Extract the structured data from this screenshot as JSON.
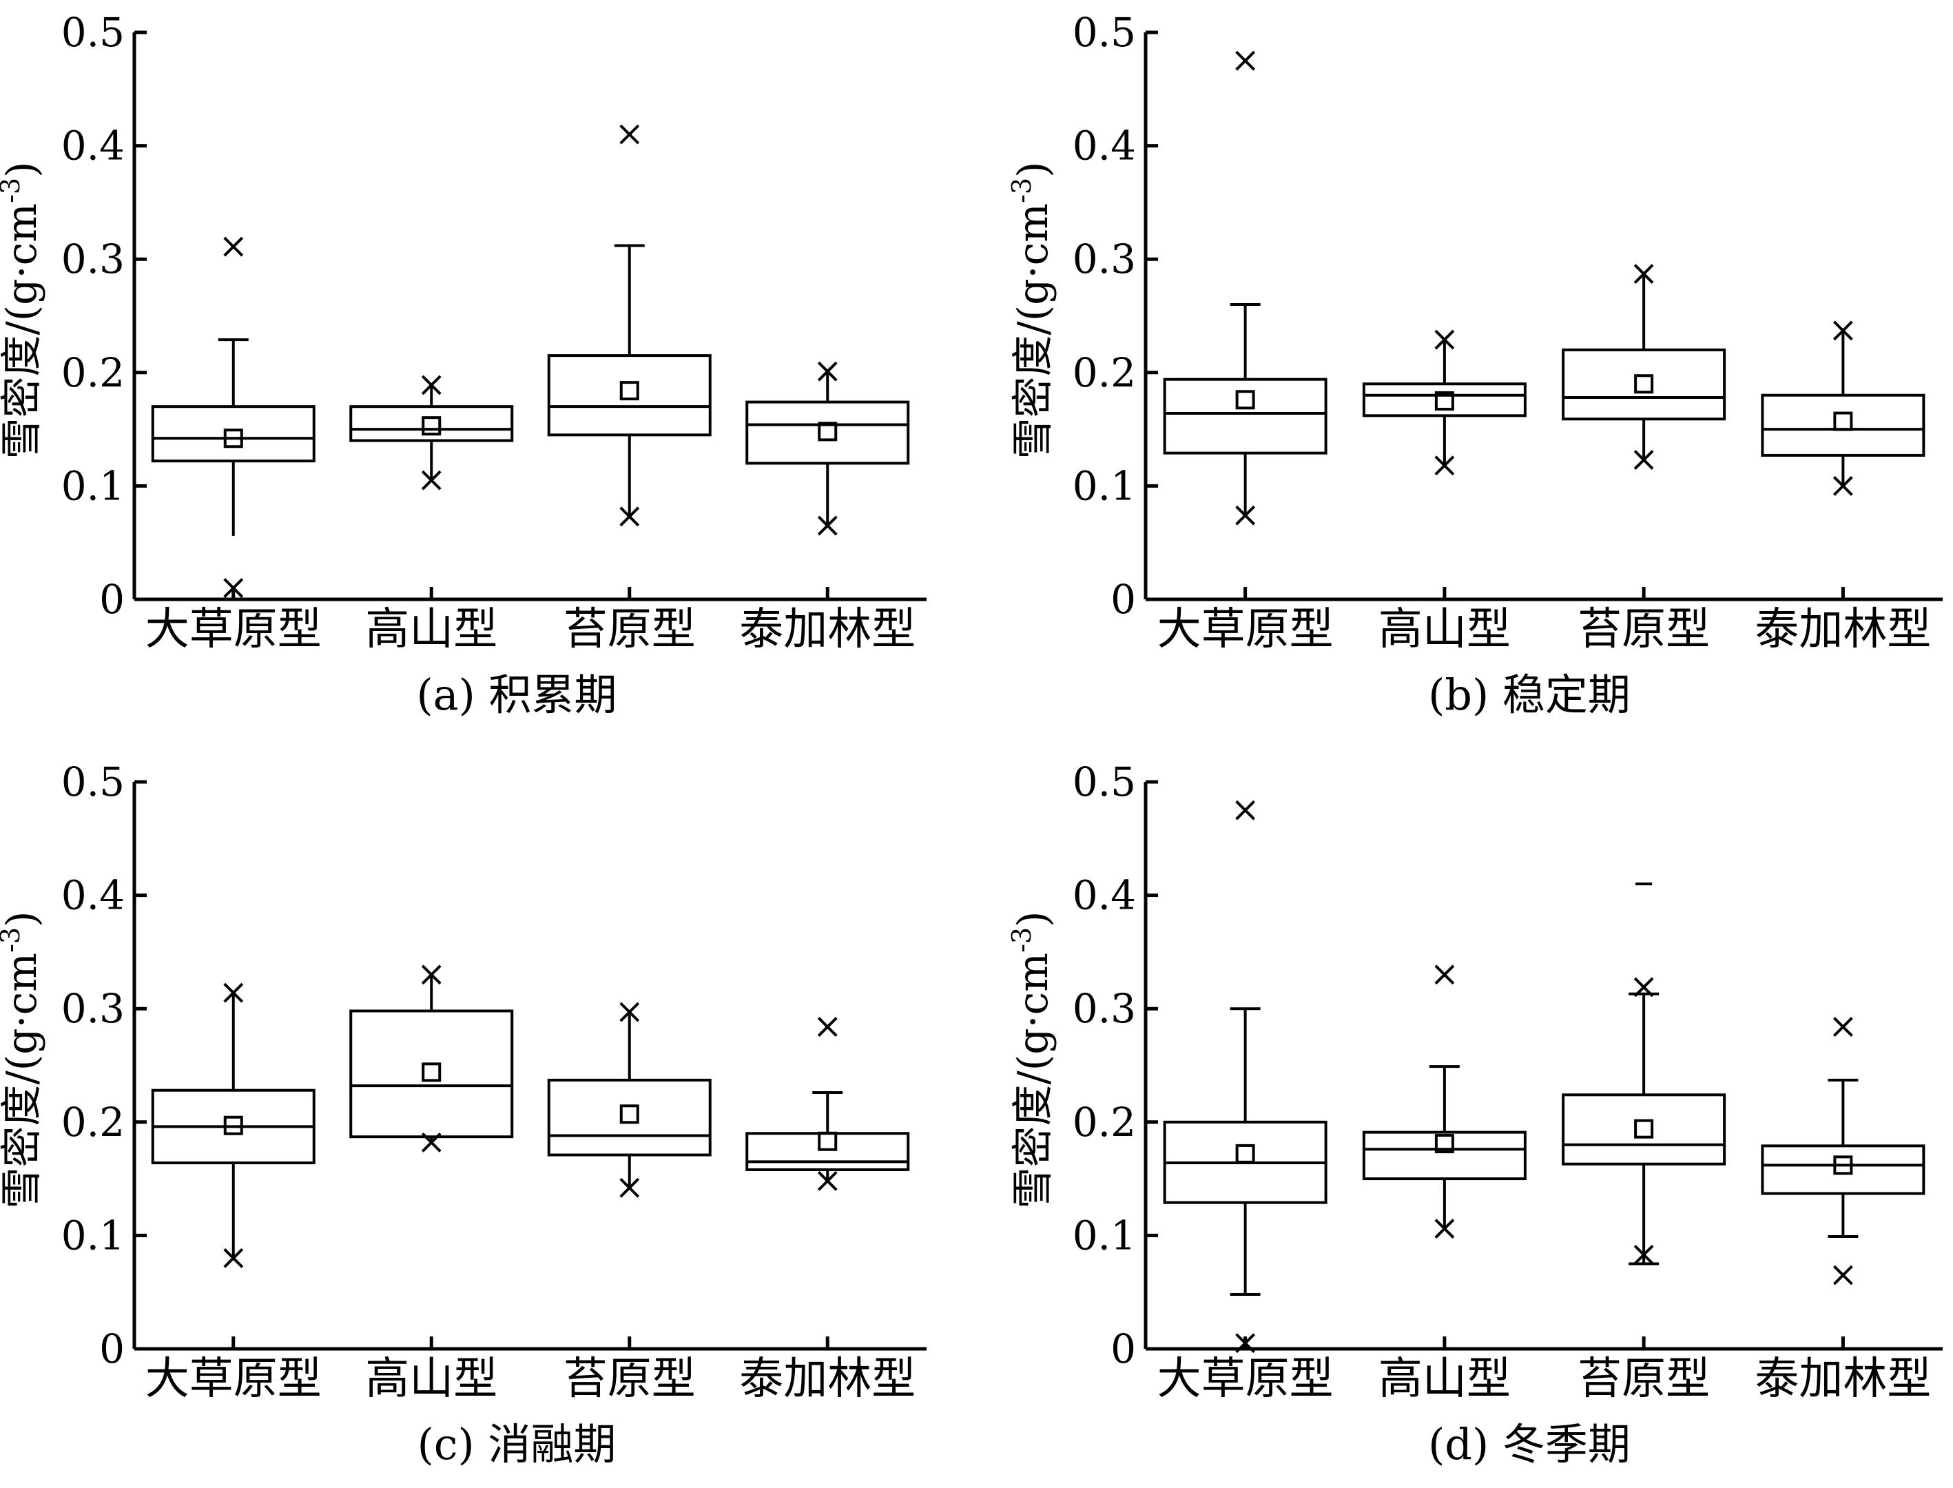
{
  "chart_data": [
    {
      "type": "box",
      "caption": "(a) 积累期",
      "ylabel_main": "雪密度/(g·cm",
      "ylabel_sup": "-3",
      "ylabel_close": ")",
      "ylim": [
        0,
        0.5
      ],
      "yticks": [
        "0",
        "0.1",
        "0.2",
        "0.3",
        "0.4",
        "0.5"
      ],
      "categories": [
        "大草原型",
        "高山型",
        "苔原型",
        "泰加林型"
      ],
      "boxes": [
        {
          "q1": 0.122,
          "median": 0.142,
          "q3": 0.17,
          "mean": 0.142,
          "whisker_low": 0.056,
          "whisker_high": 0.229,
          "outliers": [
            0.311,
            0.01
          ],
          "cap_low": false,
          "cap_high": true
        },
        {
          "q1": 0.14,
          "median": 0.15,
          "q3": 0.17,
          "mean": 0.153,
          "whisker_low": 0.105,
          "whisker_high": 0.189,
          "outliers": [
            0.189,
            0.105
          ],
          "cap_low": false,
          "cap_high": false
        },
        {
          "q1": 0.145,
          "median": 0.17,
          "q3": 0.215,
          "mean": 0.184,
          "whisker_low": 0.073,
          "whisker_high": 0.312,
          "outliers": [
            0.41,
            0.073
          ],
          "cap_low": false,
          "cap_high": true
        },
        {
          "q1": 0.12,
          "median": 0.154,
          "q3": 0.174,
          "mean": 0.148,
          "whisker_low": 0.065,
          "whisker_high": 0.201,
          "outliers": [
            0.201,
            0.065
          ],
          "cap_low": false,
          "cap_high": false
        }
      ]
    },
    {
      "type": "box",
      "caption": "(b) 稳定期",
      "ylabel_main": "雪密度/(g·cm",
      "ylabel_sup": "-3",
      "ylabel_close": ")",
      "ylim": [
        0,
        0.5
      ],
      "yticks": [
        "0",
        "0.1",
        "0.2",
        "0.3",
        "0.4",
        "0.5"
      ],
      "categories": [
        "大草原型",
        "高山型",
        "苔原型",
        "泰加林型"
      ],
      "boxes": [
        {
          "q1": 0.129,
          "median": 0.164,
          "q3": 0.194,
          "mean": 0.176,
          "whisker_low": 0.074,
          "whisker_high": 0.26,
          "outliers": [
            0.475,
            0.074
          ],
          "cap_low": false,
          "cap_high": true
        },
        {
          "q1": 0.162,
          "median": 0.18,
          "q3": 0.19,
          "mean": 0.175,
          "whisker_low": 0.118,
          "whisker_high": 0.229,
          "outliers": [
            0.229,
            0.118
          ],
          "cap_low": false,
          "cap_high": false
        },
        {
          "q1": 0.159,
          "median": 0.178,
          "q3": 0.22,
          "mean": 0.19,
          "whisker_low": 0.123,
          "whisker_high": 0.287,
          "outliers": [
            0.287,
            0.123
          ],
          "cap_low": false,
          "cap_high": false
        },
        {
          "q1": 0.127,
          "median": 0.15,
          "q3": 0.18,
          "mean": 0.157,
          "whisker_low": 0.1,
          "whisker_high": 0.237,
          "outliers": [
            0.237,
            0.1
          ],
          "cap_low": false,
          "cap_high": false
        }
      ]
    },
    {
      "type": "box",
      "caption": "(c) 消融期",
      "ylabel_main": "雪密度/(g·cm",
      "ylabel_sup": "-3",
      "ylabel_close": ")",
      "ylim": [
        0,
        0.5
      ],
      "yticks": [
        "0",
        "0.1",
        "0.2",
        "0.3",
        "0.4",
        "0.5"
      ],
      "categories": [
        "大草原型",
        "高山型",
        "苔原型",
        "泰加林型"
      ],
      "boxes": [
        {
          "q1": 0.164,
          "median": 0.196,
          "q3": 0.228,
          "mean": 0.197,
          "whisker_low": 0.08,
          "whisker_high": 0.314,
          "outliers": [
            0.314,
            0.08
          ],
          "cap_low": false,
          "cap_high": false
        },
        {
          "q1": 0.187,
          "median": 0.232,
          "q3": 0.298,
          "mean": 0.244,
          "whisker_low": 0.182,
          "whisker_high": 0.33,
          "outliers": [
            0.33,
            0.182
          ],
          "cap_low": false,
          "cap_high": false
        },
        {
          "q1": 0.171,
          "median": 0.188,
          "q3": 0.237,
          "mean": 0.207,
          "whisker_low": 0.142,
          "whisker_high": 0.297,
          "outliers": [
            0.297,
            0.142
          ],
          "cap_low": false,
          "cap_high": false
        },
        {
          "q1": 0.158,
          "median": 0.165,
          "q3": 0.19,
          "mean": 0.183,
          "whisker_low": 0.148,
          "whisker_high": 0.226,
          "outliers": [
            0.284,
            0.148
          ],
          "cap_low": false,
          "cap_high": true
        }
      ]
    },
    {
      "type": "box",
      "caption": "(d) 冬季期",
      "ylabel_main": "雪密度/(g·cm",
      "ylabel_sup": "-3",
      "ylabel_close": ")",
      "ylim": [
        0,
        0.5
      ],
      "yticks": [
        "0",
        "0.1",
        "0.2",
        "0.3",
        "0.4",
        "0.5"
      ],
      "categories": [
        "大草原型",
        "高山型",
        "苔原型",
        "泰加林型"
      ],
      "boxes": [
        {
          "q1": 0.129,
          "median": 0.164,
          "q3": 0.2,
          "mean": 0.172,
          "whisker_low": 0.048,
          "whisker_high": 0.3,
          "outliers": [
            0.475,
            0.005
          ],
          "cap_low": true,
          "cap_high": true
        },
        {
          "q1": 0.15,
          "median": 0.176,
          "q3": 0.191,
          "mean": 0.181,
          "whisker_low": 0.106,
          "whisker_high": 0.249,
          "outliers": [
            0.33,
            0.106
          ],
          "cap_low": false,
          "cap_high": true
        },
        {
          "q1": 0.163,
          "median": 0.18,
          "q3": 0.224,
          "mean": 0.194,
          "whisker_low": 0.075,
          "whisker_high": 0.313,
          "outliers": [
            0.319,
            0.083
          ],
          "extreme_dash": 0.41,
          "cap_low": true,
          "cap_high": true
        },
        {
          "q1": 0.137,
          "median": 0.162,
          "q3": 0.179,
          "mean": 0.162,
          "whisker_low": 0.099,
          "whisker_high": 0.237,
          "outliers": [
            0.284,
            0.065
          ],
          "cap_low": true,
          "cap_high": true
        }
      ]
    }
  ]
}
